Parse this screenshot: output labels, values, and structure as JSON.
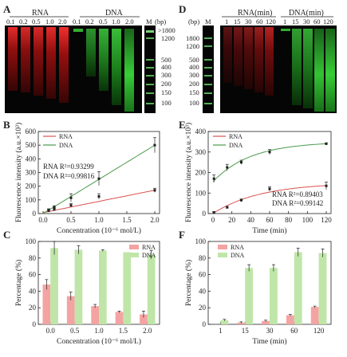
{
  "panels": {
    "A": {
      "label": "A",
      "rna_title": "RNA",
      "dna_title": "DNA",
      "lanes_rna": [
        "0.1",
        "0.2",
        "0.5",
        "1.0",
        "2.0"
      ],
      "lanes_dna": [
        "0.1",
        "0.2",
        "0.5",
        "1.0",
        "2.0"
      ],
      "marker_label": "M",
      "bp_label": "(bp)",
      "ladder": [
        ">1800",
        "1200",
        "500",
        "400",
        "300",
        "200",
        "150",
        "100"
      ]
    },
    "D": {
      "label": "D",
      "bp_label": "(bp)",
      "marker_label": "M",
      "rna_title": "RNA(min)",
      "dna_title": "DNA(min)",
      "lanes_rna": [
        "1",
        "15",
        "30",
        "60",
        "120"
      ],
      "lanes_dna": [
        "1",
        "15",
        "30",
        "60",
        "120"
      ],
      "ladder": [
        "1800",
        "1200",
        "500",
        "400",
        "300",
        "200",
        "150",
        "100"
      ]
    }
  },
  "chart_data": [
    {
      "panel": "B",
      "type": "scatter",
      "xlabel": "Concentration (10⁻⁶ mol/L)",
      "ylabel": "Fluorescence intensity (a.u.×10³)",
      "xlim": [
        0,
        2.0
      ],
      "ylim": [
        0,
        600
      ],
      "xticks": [
        "0.0",
        "0.5",
        "1.0",
        "1.5",
        "2.0"
      ],
      "yticks": [
        "0",
        "100",
        "200",
        "300",
        "400",
        "500",
        "600"
      ],
      "legend_position": "top-left",
      "series": [
        {
          "name": "RNA",
          "color": "#d9534f",
          "x": [
            0.1,
            0.2,
            0.5,
            1.0,
            2.0
          ],
          "y": [
            20,
            30,
            60,
            125,
            170
          ],
          "err": [
            8,
            10,
            12,
            20,
            15
          ],
          "fit": [
            7,
            82
          ],
          "r2_label": "RNA  R²=0.93299"
        },
        {
          "name": "DNA",
          "color": "#4a9a4a",
          "x": [
            0.1,
            0.2,
            0.5,
            1.0,
            2.0
          ],
          "y": [
            25,
            45,
            115,
            255,
            500
          ],
          "err": [
            10,
            12,
            30,
            50,
            55
          ],
          "fit": [
            0,
            250
          ],
          "r2_label": "DNA  R²=0.99816"
        }
      ]
    },
    {
      "panel": "E",
      "type": "scatter",
      "xlabel": "Time (min)",
      "ylabel": "Fluorescence intensity (a.u.×10³)",
      "xlim": [
        0,
        120
      ],
      "ylim": [
        0,
        400
      ],
      "xticks": [
        "0",
        "20",
        "40",
        "60",
        "80",
        "100",
        "120"
      ],
      "yticks": [
        "0",
        "100",
        "200",
        "300",
        "400"
      ],
      "legend_position": "top-left",
      "series": [
        {
          "name": "RNA",
          "color": "#d9534f",
          "x": [
            1,
            15,
            30,
            60,
            120
          ],
          "y": [
            5,
            30,
            65,
            120,
            135
          ],
          "err": [
            5,
            5,
            6,
            10,
            18
          ],
          "curve": {
            "a": 150,
            "k": 0.02
          },
          "r2_label": "RNA R²=0.89403"
        },
        {
          "name": "DNA",
          "color": "#4a9a4a",
          "x": [
            1,
            15,
            30,
            60,
            120
          ],
          "y": [
            170,
            225,
            250,
            300,
            340
          ],
          "err": [
            18,
            15,
            10,
            12,
            5
          ],
          "curve": {
            "a0": 155,
            "a": 195,
            "k": 0.025
          },
          "r2_label": "DNA R²=0.99142"
        }
      ]
    },
    {
      "panel": "C",
      "type": "bar",
      "xlabel": "Concentration (10⁻⁶ mol/L)",
      "ylabel": "Percentage (%)",
      "ylim": [
        0,
        100
      ],
      "yticks": [
        "0",
        "20",
        "40",
        "60",
        "80",
        "100"
      ],
      "categories": [
        "0.0",
        "0.5",
        "1.0",
        "1.5",
        "2.0"
      ],
      "legend_position": "top-right",
      "series": [
        {
          "name": "RNA",
          "color": "#f4a3a3",
          "values": [
            48,
            34,
            22,
            15,
            12
          ],
          "err": [
            6,
            5,
            2,
            1,
            4
          ]
        },
        {
          "name": "DNA",
          "color": "#bfe6a8",
          "values": [
            92,
            90,
            89,
            87,
            84
          ],
          "err": [
            8,
            5,
            1,
            0,
            5
          ]
        }
      ]
    },
    {
      "panel": "F",
      "type": "bar",
      "xlabel": "Time (min)",
      "ylabel": "Percentage (%)",
      "ylim": [
        0,
        100
      ],
      "yticks": [
        "0",
        "20",
        "40",
        "60",
        "80",
        "100"
      ],
      "categories": [
        "1",
        "15",
        "30",
        "60",
        "120"
      ],
      "legend_position": "top-left",
      "series": [
        {
          "name": "RNA",
          "color": "#f4a3a3",
          "values": [
            0,
            2,
            4,
            11,
            21
          ],
          "err": [
            0,
            1,
            1,
            1,
            1
          ]
        },
        {
          "name": "DNA",
          "color": "#bfe6a8",
          "values": [
            5,
            68,
            68,
            87,
            86
          ],
          "err": [
            1,
            4,
            4,
            5,
            5
          ]
        }
      ]
    }
  ]
}
